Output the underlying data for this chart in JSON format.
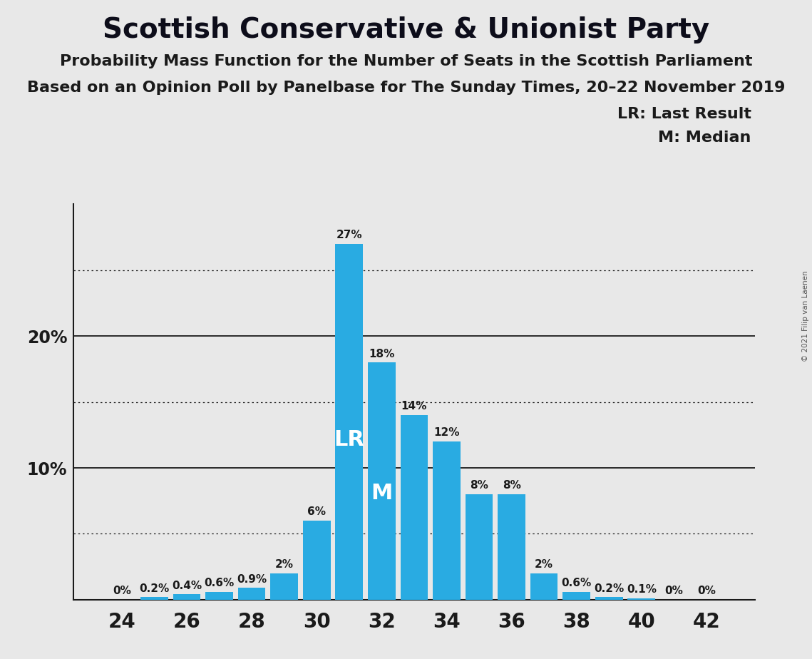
{
  "title": "Scottish Conservative & Unionist Party",
  "subtitle1": "Probability Mass Function for the Number of Seats in the Scottish Parliament",
  "subtitle2": "Based on an Opinion Poll by Panelbase for The Sunday Times, 20–22 November 2019",
  "copyright": "© 2021 Filip van Laenen",
  "legend_lr": "LR: Last Result",
  "legend_m": "M: Median",
  "bar_color": "#29ABE2",
  "background_color": "#E8E8E8",
  "seats": [
    24,
    25,
    26,
    27,
    28,
    29,
    30,
    31,
    32,
    33,
    34,
    35,
    36,
    37,
    38,
    39,
    40,
    41,
    42
  ],
  "values": [
    0.0,
    0.2,
    0.4,
    0.6,
    0.9,
    2.0,
    6.0,
    27.0,
    18.0,
    14.0,
    12.0,
    8.0,
    8.0,
    2.0,
    0.6,
    0.2,
    0.1,
    0.0,
    0.0
  ],
  "labels": [
    "0%",
    "0.2%",
    "0.4%",
    "0.6%",
    "0.9%",
    "2%",
    "6%",
    "27%",
    "18%",
    "14%",
    "12%",
    "8%",
    "8%",
    "2%",
    "0.6%",
    "0.2%",
    "0.1%",
    "0%",
    "0%"
  ],
  "lr_seat": 31,
  "median_seat": 32,
  "xtick_seats": [
    24,
    26,
    28,
    30,
    32,
    34,
    36,
    38,
    40,
    42
  ],
  "solid_lines": [
    10,
    20
  ],
  "dotted_lines": [
    5,
    15,
    25
  ],
  "ylim": [
    0,
    30
  ],
  "xlim_left": 22.5,
  "xlim_right": 43.5,
  "bar_width": 0.85,
  "title_fontsize": 28,
  "subtitle_fontsize": 16,
  "ytick_fontsize": 17,
  "xtick_fontsize": 20,
  "label_fontsize": 11,
  "lr_m_fontsize": 22,
  "legend_fontsize": 16,
  "text_color": "#1a1a1a"
}
